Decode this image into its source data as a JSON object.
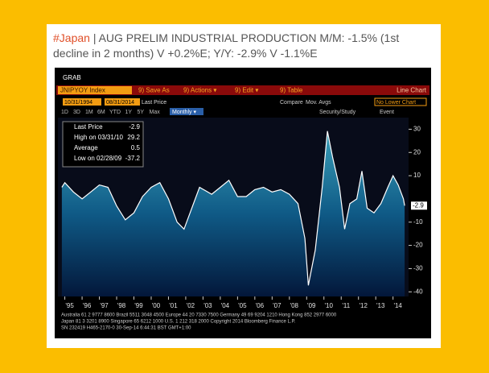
{
  "tweet": {
    "hashtag": "#Japan",
    "text": "| AUG PRELIM INDUSTRIAL PRODUCTION M/M: -1.5% (1st decline in 2 months) V +0.2%E; Y/Y: -2.9% V -1.1%E"
  },
  "terminal": {
    "grab": "GRAB",
    "ticker": "JNIPYOY Index",
    "actions": [
      "9) Save As",
      "9) Actions ▾",
      "9) Edit ▾",
      "9) Table"
    ],
    "chart_kind": "Line Chart",
    "start_date": "10/31/1994",
    "end_date": "08/31/2014",
    "field": "Last Price",
    "compare": "Compare",
    "mov_avgs": "Mov. Avgs",
    "lower": "No Lower Chart",
    "periods": [
      "1D",
      "3D",
      "1M",
      "6M",
      "YTD",
      "1Y",
      "5Y",
      "Max"
    ],
    "frequency": "Monthly ▾",
    "study": "Security/Study",
    "event": "Event"
  },
  "chart_data": {
    "type": "area",
    "legend_stats": [
      {
        "label": "Last Price",
        "value": -2.9
      },
      {
        "label": "High on 03/31/10",
        "value": 29.2
      },
      {
        "label": "Average",
        "value": 0.5
      },
      {
        "label": "Low on 02/28/09",
        "value": -37.2
      }
    ],
    "series": [
      {
        "name": "JNIPYOY Index",
        "color": "#ffffff",
        "x": [
          1994.83,
          1995.0,
          1995.5,
          1996.0,
          1996.5,
          1997.0,
          1997.5,
          1998.0,
          1998.5,
          1999.0,
          1999.5,
          2000.0,
          2000.5,
          2001.0,
          2001.5,
          2001.9,
          2002.3,
          2002.8,
          2003.5,
          2004.0,
          2004.5,
          2005.0,
          2005.5,
          2006.0,
          2006.5,
          2007.0,
          2007.5,
          2008.0,
          2008.5,
          2008.9,
          2009.1,
          2009.5,
          2009.9,
          2010.2,
          2010.5,
          2010.9,
          2011.2,
          2011.5,
          2011.9,
          2012.2,
          2012.5,
          2012.9,
          2013.3,
          2013.7,
          2014.0,
          2014.3,
          2014.6,
          2014.67
        ],
        "values": [
          5,
          7,
          3,
          0,
          3,
          6,
          5,
          -3,
          -9,
          -6,
          1,
          5,
          7,
          0,
          -10,
          -13,
          -5,
          5,
          2,
          5,
          8,
          1,
          1,
          4,
          5,
          3,
          4,
          2,
          -2,
          -17,
          -37.2,
          -22,
          5,
          29.2,
          18,
          5,
          -13,
          -2,
          0,
          12,
          -4,
          -6,
          -2,
          5,
          10,
          6,
          0,
          -2.9
        ]
      }
    ],
    "xlim": [
      1994.6,
      2014.9
    ],
    "xticks": [
      {
        "value": 1995,
        "label": "'95"
      },
      {
        "value": 1996,
        "label": "'96"
      },
      {
        "value": 1997,
        "label": "'97"
      },
      {
        "value": 1998,
        "label": "'98"
      },
      {
        "value": 1999,
        "label": "'99"
      },
      {
        "value": 2000,
        "label": "'00"
      },
      {
        "value": 2001,
        "label": "'01"
      },
      {
        "value": 2002,
        "label": "'02"
      },
      {
        "value": 2003,
        "label": "'03"
      },
      {
        "value": 2004,
        "label": "'04"
      },
      {
        "value": 2005,
        "label": "'05"
      },
      {
        "value": 2006,
        "label": "'06"
      },
      {
        "value": 2007,
        "label": "'07"
      },
      {
        "value": 2008,
        "label": "'08"
      },
      {
        "value": 2009,
        "label": "'09"
      },
      {
        "value": 2010,
        "label": "'10"
      },
      {
        "value": 2011,
        "label": "'11"
      },
      {
        "value": 2012,
        "label": "'12"
      },
      {
        "value": 2013,
        "label": "'13"
      },
      {
        "value": 2014,
        "label": "'14"
      }
    ],
    "ylim": [
      -42,
      35
    ],
    "yticks": [
      30,
      20,
      10,
      -10,
      -20,
      -30,
      -40
    ]
  },
  "footer": [
    "Australia 61 2 9777 8600 Brazil 5511 3048 4500 Europe 44 20 7330 7500 Germany 49 69 9204 1210 Hong Kong 852 2977 6000",
    "Japan 81 3 3201 8900     Singapore 65 6212 1000     U.S. 1 212 318 2000     Copyright 2014 Bloomberg Finance L.P.",
    "SN 232419 H465-2170-0 30-Sep-14 6:44:31 BST GMT+1:00"
  ]
}
